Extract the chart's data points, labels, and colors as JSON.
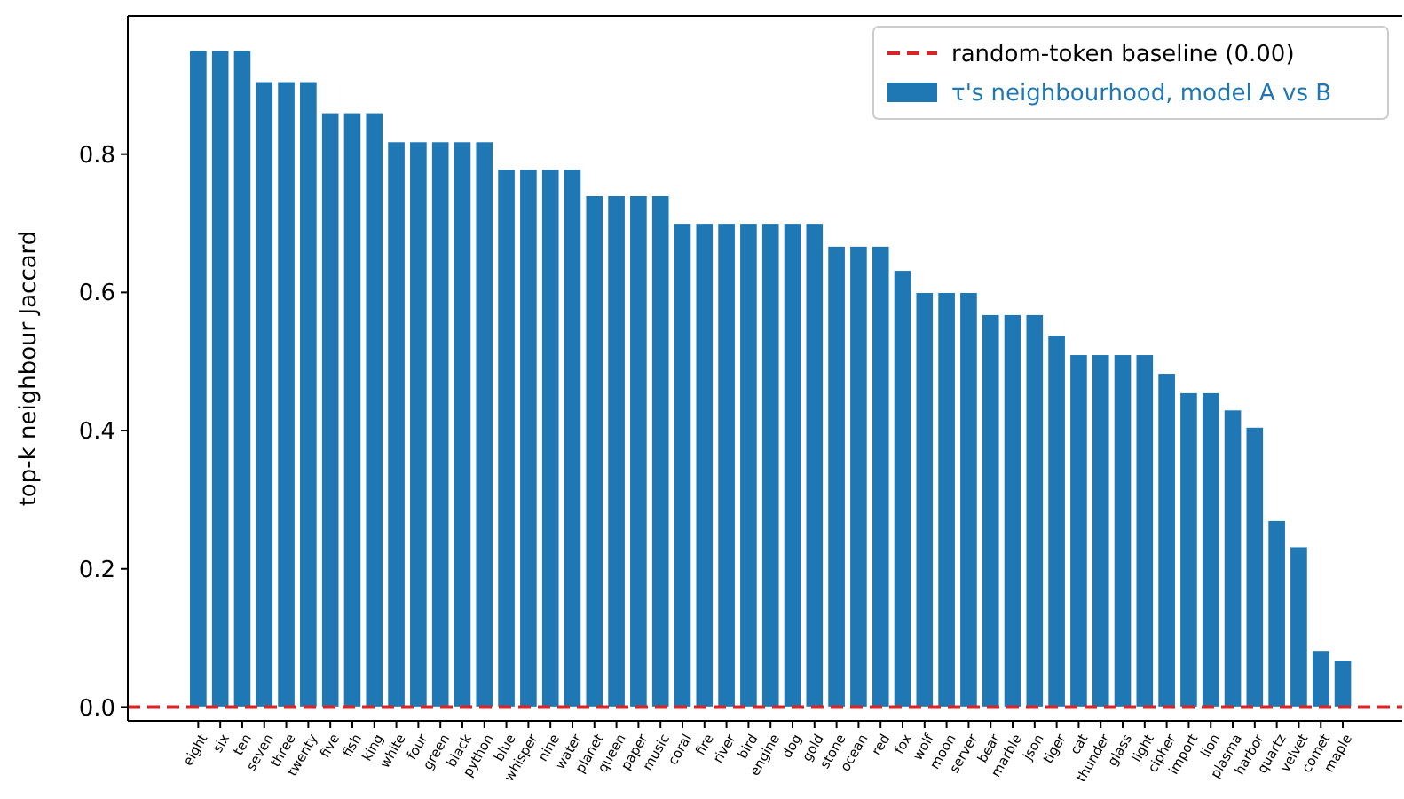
{
  "chart_data": {
    "type": "bar",
    "ylabel": "top-k neighbour Jaccard",
    "categories": [
      "eight",
      "six",
      "ten",
      "seven",
      "three",
      "twenty",
      "five",
      "fish",
      "king",
      "white",
      "four",
      "green",
      "black",
      "python",
      "blue",
      "whisper",
      "nine",
      "water",
      "planet",
      "queen",
      "paper",
      "music",
      "coral",
      "fire",
      "river",
      "bird",
      "engine",
      "dog",
      "gold",
      "stone",
      "ocean",
      "red",
      "fox",
      "wolf",
      "moon",
      "server",
      "bear",
      "marble",
      "json",
      "tiger",
      "cat",
      "thunder",
      "glass",
      "light",
      "cipher",
      "import",
      "lion",
      "plasma",
      "harbor",
      "quartz",
      "velvet",
      "comet",
      "maple"
    ],
    "series": [
      {
        "name": "τ's neighbourhood, model A vs B",
        "color": "#1f77b4",
        "values": [
          0.95,
          0.95,
          0.95,
          0.905,
          0.905,
          0.905,
          0.86,
          0.86,
          0.86,
          0.818,
          0.818,
          0.818,
          0.818,
          0.818,
          0.778,
          0.778,
          0.778,
          0.778,
          0.74,
          0.74,
          0.74,
          0.74,
          0.7,
          0.7,
          0.7,
          0.7,
          0.7,
          0.7,
          0.7,
          0.667,
          0.667,
          0.667,
          0.632,
          0.6,
          0.6,
          0.6,
          0.568,
          0.568,
          0.568,
          0.538,
          0.51,
          0.51,
          0.51,
          0.51,
          0.483,
          0.455,
          0.455,
          0.43,
          0.405,
          0.27,
          0.232,
          0.082,
          0.068
        ]
      }
    ],
    "ref_lines": [
      {
        "axis": "y",
        "value": 0,
        "label": "random-token baseline (0.00)",
        "color": "#d62728",
        "line_style": "dashed"
      }
    ],
    "ylim": [
      -0.02,
      1.0
    ],
    "yticks": [
      {
        "value": 0,
        "label": "0.0"
      },
      {
        "value": 0.2,
        "label": "0.2"
      },
      {
        "value": 0.4,
        "label": "0.4"
      },
      {
        "value": 0.6,
        "label": "0.6"
      },
      {
        "value": 0.8,
        "label": "0.8"
      }
    ],
    "legend": "top right"
  }
}
